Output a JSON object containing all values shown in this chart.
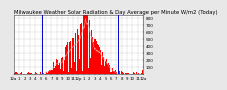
{
  "title": "Milwaukee Weather Solar Radiation & Day Average per Minute W/m2 (Today)",
  "title_fontsize": 3.8,
  "bg_color": "#e8e8e8",
  "plot_bg_color": "#ffffff",
  "grid_color": "#aaaaaa",
  "bar_color": "#ff0000",
  "avg_line_color": "#ffaaaa",
  "sunrise_color": "#0000cc",
  "ylim": [
    0,
    850
  ],
  "yticks": [
    100,
    200,
    300,
    400,
    500,
    600,
    700,
    800
  ],
  "ylabel_fontsize": 3.0,
  "xlabel_fontsize": 2.8,
  "num_points": 1440,
  "sunrise_idx": 318,
  "sunset_idx": 1158,
  "peak_idx": 810,
  "peak_val": 820,
  "xtick_labels": [
    "12a",
    "1",
    "2",
    "3",
    "4",
    "5",
    "6",
    "7",
    "8",
    "9",
    "10",
    "11",
    "12p",
    "1",
    "2",
    "3",
    "4",
    "5",
    "6",
    "7",
    "8",
    "9",
    "10",
    "11",
    "12a"
  ],
  "xtick_positions": [
    0,
    60,
    120,
    180,
    240,
    300,
    360,
    420,
    480,
    540,
    600,
    660,
    720,
    780,
    840,
    900,
    960,
    1020,
    1080,
    1140,
    1200,
    1260,
    1320,
    1380,
    1440
  ]
}
